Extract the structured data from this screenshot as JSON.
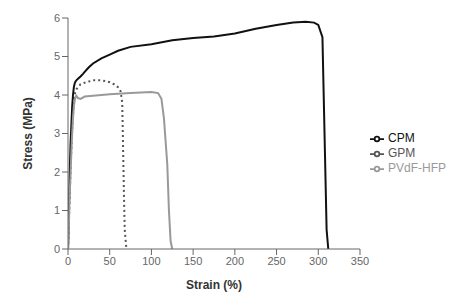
{
  "chart_data": {
    "type": "line",
    "title": "",
    "xlabel": "Strain (%)",
    "ylabel": "Stress (MPa)",
    "xlim": [
      0,
      350
    ],
    "ylim": [
      0,
      6
    ],
    "xticks": [
      0,
      50,
      100,
      150,
      200,
      250,
      300,
      350
    ],
    "yticks": [
      0,
      1,
      2,
      3,
      4,
      5,
      6
    ],
    "grid": false,
    "legend": "right",
    "series": [
      {
        "name": "GPM",
        "color": "#555555",
        "line_style": "dotted",
        "x": [
          0,
          0.3,
          0.6,
          1.0,
          1.5,
          2.0,
          3.0,
          4.0,
          5.0,
          6.0,
          7.0,
          8.0,
          9.0,
          10.0,
          12.0,
          15.0,
          18.0,
          20.0,
          25.0,
          30.0,
          35.0,
          40.0,
          45.0,
          50.0,
          55.0,
          60.0,
          63.0,
          65.0,
          67.0,
          68.0,
          69.0,
          70.0
        ],
        "values": [
          0,
          0.15,
          0.35,
          0.65,
          1.0,
          1.4,
          2.0,
          2.6,
          3.1,
          3.5,
          3.8,
          4.0,
          4.1,
          4.15,
          4.2,
          4.28,
          4.3,
          4.32,
          4.35,
          4.38,
          4.38,
          4.38,
          4.36,
          4.33,
          4.28,
          4.2,
          4.1,
          3.8,
          1.5,
          0.5,
          0.25,
          0.0
        ]
      },
      {
        "name": "CPM",
        "color": "#111111",
        "line_style": "solid",
        "x": [
          0,
          0.3,
          0.6,
          1.0,
          1.5,
          2.0,
          3.0,
          4.0,
          5.0,
          6.0,
          7.0,
          8.0,
          9.0,
          10.0,
          12.0,
          15.0,
          18.0,
          20.0,
          25.0,
          30.0,
          40.0,
          50.0,
          60.0,
          75.0,
          100.0,
          125.0,
          150.0,
          175.0,
          200.0,
          225.0,
          250.0,
          270.0,
          285.0,
          295.0,
          300.0,
          305.0,
          308.0,
          310.0,
          312.0
        ],
        "values": [
          0,
          0.2,
          0.5,
          0.9,
          1.4,
          1.9,
          2.7,
          3.2,
          3.7,
          4.0,
          4.2,
          4.3,
          4.35,
          4.38,
          4.42,
          4.48,
          4.55,
          4.6,
          4.72,
          4.82,
          4.95,
          5.05,
          5.15,
          5.25,
          5.32,
          5.42,
          5.48,
          5.52,
          5.6,
          5.72,
          5.82,
          5.88,
          5.9,
          5.88,
          5.82,
          5.5,
          2.5,
          0.5,
          0.0
        ]
      },
      {
        "name": "PVdF-HFP",
        "color": "#999999",
        "line_style": "solid",
        "x": [
          0,
          0.3,
          0.6,
          1.0,
          1.5,
          2.0,
          3.0,
          4.0,
          5.0,
          6.0,
          7.0,
          8.0,
          9.0,
          10.0,
          12.0,
          15.0,
          20.0,
          30.0,
          50.0,
          75.0,
          100.0,
          108.0,
          112.0,
          115.0,
          117.0,
          119.0,
          121.0,
          123.0,
          125.0
        ],
        "values": [
          0,
          0.1,
          0.3,
          0.6,
          1.0,
          1.4,
          1.9,
          2.5,
          3.0,
          3.4,
          3.7,
          3.85,
          3.95,
          3.98,
          3.92,
          3.9,
          3.96,
          3.98,
          4.02,
          4.05,
          4.08,
          4.05,
          3.9,
          3.4,
          2.8,
          2.2,
          1.0,
          0.2,
          0.0
        ]
      }
    ]
  }
}
